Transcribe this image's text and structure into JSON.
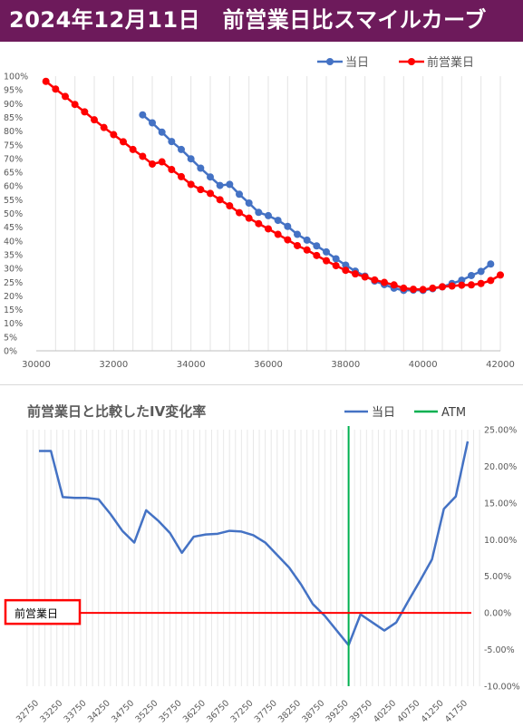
{
  "header": {
    "title": "2024年12月11日　前営業日比スマイルカーブ",
    "bg_color": "#6d1a5b"
  },
  "chart_data": [
    {
      "type": "line",
      "title": "",
      "xlabel": "",
      "ylabel": "",
      "xlim": [
        30000,
        42000
      ],
      "ylim": [
        0,
        100
      ],
      "x_ticks": [
        30000,
        32000,
        34000,
        36000,
        38000,
        40000,
        42000
      ],
      "y_ticks": [
        "0%",
        "5%",
        "10%",
        "15%",
        "20%",
        "25%",
        "30%",
        "35%",
        "40%",
        "45%",
        "50%",
        "55%",
        "60%",
        "65%",
        "70%",
        "75%",
        "80%",
        "85%",
        "90%",
        "95%",
        "100%"
      ],
      "grid": "vertical",
      "legend_position": "top-right",
      "series": [
        {
          "name": "当日",
          "color": "#4472c4",
          "x": [
            32750,
            33000,
            33250,
            33500,
            33750,
            34000,
            34250,
            34500,
            34750,
            35000,
            35250,
            35500,
            35750,
            36000,
            36250,
            36500,
            36750,
            37000,
            37250,
            37500,
            37750,
            38000,
            38250,
            38500,
            38750,
            39000,
            39250,
            39500,
            39750,
            40000,
            40250,
            40500,
            40750,
            41000,
            41250,
            41500,
            41750
          ],
          "values": [
            85.9,
            83.0,
            79.6,
            76.2,
            73.3,
            69.9,
            66.5,
            63.3,
            60.2,
            60.6,
            57.0,
            53.8,
            50.4,
            49.2,
            47.5,
            45.3,
            42.4,
            40.3,
            38.2,
            36.0,
            33.5,
            31.2,
            29.0,
            27.2,
            25.4,
            24.1,
            22.8,
            22.0,
            22.1,
            22.0,
            22.6,
            23.3,
            24.5,
            25.7,
            27.4,
            28.9,
            31.6
          ]
        },
        {
          "name": "前営業日",
          "color": "#ff0000",
          "x": [
            30250,
            30500,
            30750,
            31000,
            31250,
            31500,
            31750,
            32000,
            32250,
            32500,
            32750,
            33000,
            33250,
            33500,
            33750,
            34000,
            34250,
            34500,
            34750,
            35000,
            35250,
            35500,
            35750,
            36000,
            36250,
            36500,
            36750,
            37000,
            37250,
            37500,
            37750,
            38000,
            38250,
            38500,
            38750,
            39000,
            39250,
            39500,
            39750,
            40000,
            40250,
            40500,
            40750,
            41000,
            41250,
            41500,
            41750,
            42000
          ],
          "values": [
            98.1,
            95.3,
            92.6,
            89.7,
            87.0,
            84.1,
            81.3,
            78.7,
            76.1,
            73.3,
            70.8,
            68.0,
            68.8,
            66.0,
            63.4,
            60.6,
            58.7,
            57.3,
            55.0,
            52.8,
            50.3,
            48.3,
            46.3,
            44.4,
            42.4,
            40.4,
            38.3,
            36.7,
            34.7,
            32.8,
            31.0,
            29.3,
            28.0,
            26.9,
            25.8,
            24.9,
            24.0,
            22.8,
            22.4,
            22.3,
            22.8,
            23.3,
            23.6,
            23.9,
            24.0,
            24.5,
            25.6,
            27.6
          ]
        }
      ]
    },
    {
      "type": "line",
      "title": "前営業日と比較したIV変化率",
      "xlabel": "",
      "ylabel": "",
      "ylim": [
        -10,
        25
      ],
      "y_ticks": [
        "-10.00%",
        "-5.00%",
        "0.00%",
        "5.00%",
        "10.00%",
        "15.00%",
        "20.00%",
        "25.00%"
      ],
      "y_axis_position": "right",
      "x_tick_labels": [
        "32750",
        "33250",
        "33750",
        "34250",
        "34750",
        "35250",
        "35750",
        "36250",
        "36750",
        "37250",
        "37750",
        "38250",
        "38750",
        "39250",
        "39750",
        "40250",
        "40750",
        "41250",
        "41750"
      ],
      "grid": "vertical",
      "legend_position": "top-right",
      "x": [
        32750,
        33000,
        33250,
        33500,
        33750,
        34000,
        34250,
        34500,
        34750,
        35000,
        35250,
        35500,
        35750,
        36000,
        36250,
        36500,
        36750,
        37000,
        37250,
        37500,
        37750,
        38000,
        38250,
        38500,
        38750,
        39000,
        39250,
        39500,
        39750,
        40000,
        40250,
        40500,
        40750,
        41000,
        41250,
        41500,
        41750
      ],
      "series": [
        {
          "name": "当日",
          "color": "#4472c4",
          "values": [
            22.1,
            22.1,
            15.8,
            15.7,
            15.7,
            15.5,
            13.5,
            11.2,
            9.6,
            14.0,
            12.6,
            10.9,
            8.2,
            10.4,
            10.7,
            10.8,
            11.2,
            11.1,
            10.6,
            9.6,
            7.9,
            6.2,
            3.9,
            1.2,
            -0.4,
            -2.4,
            -4.4,
            -0.2,
            -1.3,
            -2.4,
            -1.3,
            1.6,
            4.4,
            7.3,
            14.2,
            15.9,
            23.4
          ]
        },
        {
          "name": "ATM",
          "color": "#00b050",
          "x_value": 39250
        }
      ],
      "reference_line": {
        "label": "前営業日",
        "value": 0,
        "color": "#ff0000"
      }
    }
  ]
}
